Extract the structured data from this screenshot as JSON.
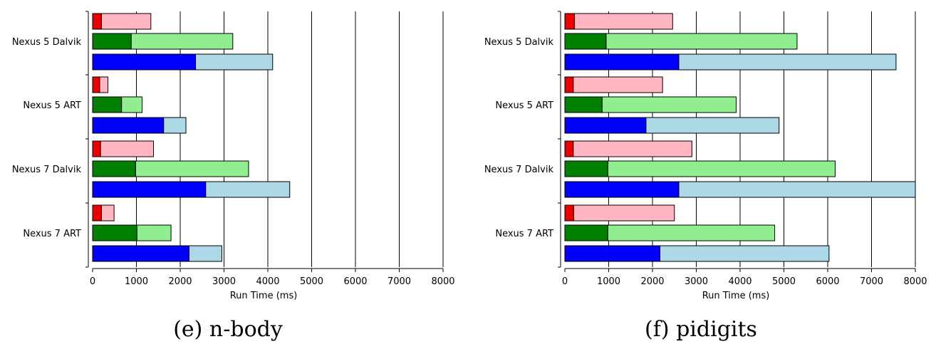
{
  "chart_data": [
    {
      "type": "bar",
      "orientation": "horizontal",
      "stacked": true,
      "title": "",
      "caption": "(e) n-body",
      "xlabel": "Run Time (ms)",
      "ylabel": "",
      "xlim": [
        0,
        8000
      ],
      "xticks": [
        "0",
        "1000",
        "2000",
        "3000",
        "4000",
        "5000",
        "6000",
        "7000",
        "8000"
      ],
      "grid": "vertical",
      "categories": [
        "Nexus 5 Dalvik",
        "Nexus 5 ART",
        "Nexus 7 Dalvik",
        "Nexus 7 ART"
      ],
      "bars": [
        {
          "category": "Nexus 5 Dalvik",
          "color": "red",
          "values": [
            200,
            1330
          ]
        },
        {
          "category": "Nexus 5 Dalvik",
          "color": "green",
          "values": [
            880,
            3200
          ]
        },
        {
          "category": "Nexus 5 Dalvik",
          "color": "blue",
          "values": [
            2350,
            4110
          ]
        },
        {
          "category": "Nexus 5 ART",
          "color": "red",
          "values": [
            160,
            350
          ]
        },
        {
          "category": "Nexus 5 ART",
          "color": "green",
          "values": [
            660,
            1130
          ]
        },
        {
          "category": "Nexus 5 ART",
          "color": "blue",
          "values": [
            1620,
            2130
          ]
        },
        {
          "category": "Nexus 7 Dalvik",
          "color": "red",
          "values": [
            180,
            1390
          ]
        },
        {
          "category": "Nexus 7 Dalvik",
          "color": "green",
          "values": [
            980,
            3560
          ]
        },
        {
          "category": "Nexus 7 Dalvik",
          "color": "blue",
          "values": [
            2580,
            4500
          ]
        },
        {
          "category": "Nexus 7 ART",
          "color": "red",
          "values": [
            200,
            490
          ]
        },
        {
          "category": "Nexus 7 ART",
          "color": "green",
          "values": [
            1010,
            1790
          ]
        },
        {
          "category": "Nexus 7 ART",
          "color": "blue",
          "values": [
            2200,
            2950
          ]
        }
      ]
    },
    {
      "type": "bar",
      "orientation": "horizontal",
      "stacked": true,
      "title": "",
      "caption": "(f) pidigits",
      "xlabel": "Run Time (ms)",
      "ylabel": "",
      "xlim": [
        0,
        8000
      ],
      "xticks": [
        "0",
        "1000",
        "2000",
        "3000",
        "4000",
        "5000",
        "6000",
        "7000",
        "8000"
      ],
      "grid": "vertical",
      "categories": [
        "Nexus 5 Dalvik",
        "Nexus 5 ART",
        "Nexus 7 Dalvik",
        "Nexus 7 ART"
      ],
      "bars": [
        {
          "category": "Nexus 5 Dalvik",
          "color": "red",
          "values": [
            220,
            2460
          ]
        },
        {
          "category": "Nexus 5 Dalvik",
          "color": "green",
          "values": [
            940,
            5300
          ]
        },
        {
          "category": "Nexus 5 Dalvik",
          "color": "blue",
          "values": [
            2600,
            7560
          ]
        },
        {
          "category": "Nexus 5 ART",
          "color": "red",
          "values": [
            190,
            2230
          ]
        },
        {
          "category": "Nexus 5 ART",
          "color": "green",
          "values": [
            850,
            3910
          ]
        },
        {
          "category": "Nexus 5 ART",
          "color": "blue",
          "values": [
            1850,
            4890
          ]
        },
        {
          "category": "Nexus 7 Dalvik",
          "color": "red",
          "values": [
            190,
            2900
          ]
        },
        {
          "category": "Nexus 7 Dalvik",
          "color": "green",
          "values": [
            980,
            6170
          ]
        },
        {
          "category": "Nexus 7 Dalvik",
          "color": "blue",
          "values": [
            2600,
            8000
          ]
        },
        {
          "category": "Nexus 7 ART",
          "color": "red",
          "values": [
            200,
            2500
          ]
        },
        {
          "category": "Nexus 7 ART",
          "color": "green",
          "values": [
            980,
            4790
          ]
        },
        {
          "category": "Nexus 7 ART",
          "color": "blue",
          "values": [
            2170,
            6030
          ]
        }
      ]
    }
  ],
  "colors": {
    "red": [
      "#ee0000",
      "#ffb6c1"
    ],
    "green": [
      "#007f00",
      "#90ee90"
    ],
    "blue": [
      "#0000ff",
      "#add8e6"
    ]
  }
}
